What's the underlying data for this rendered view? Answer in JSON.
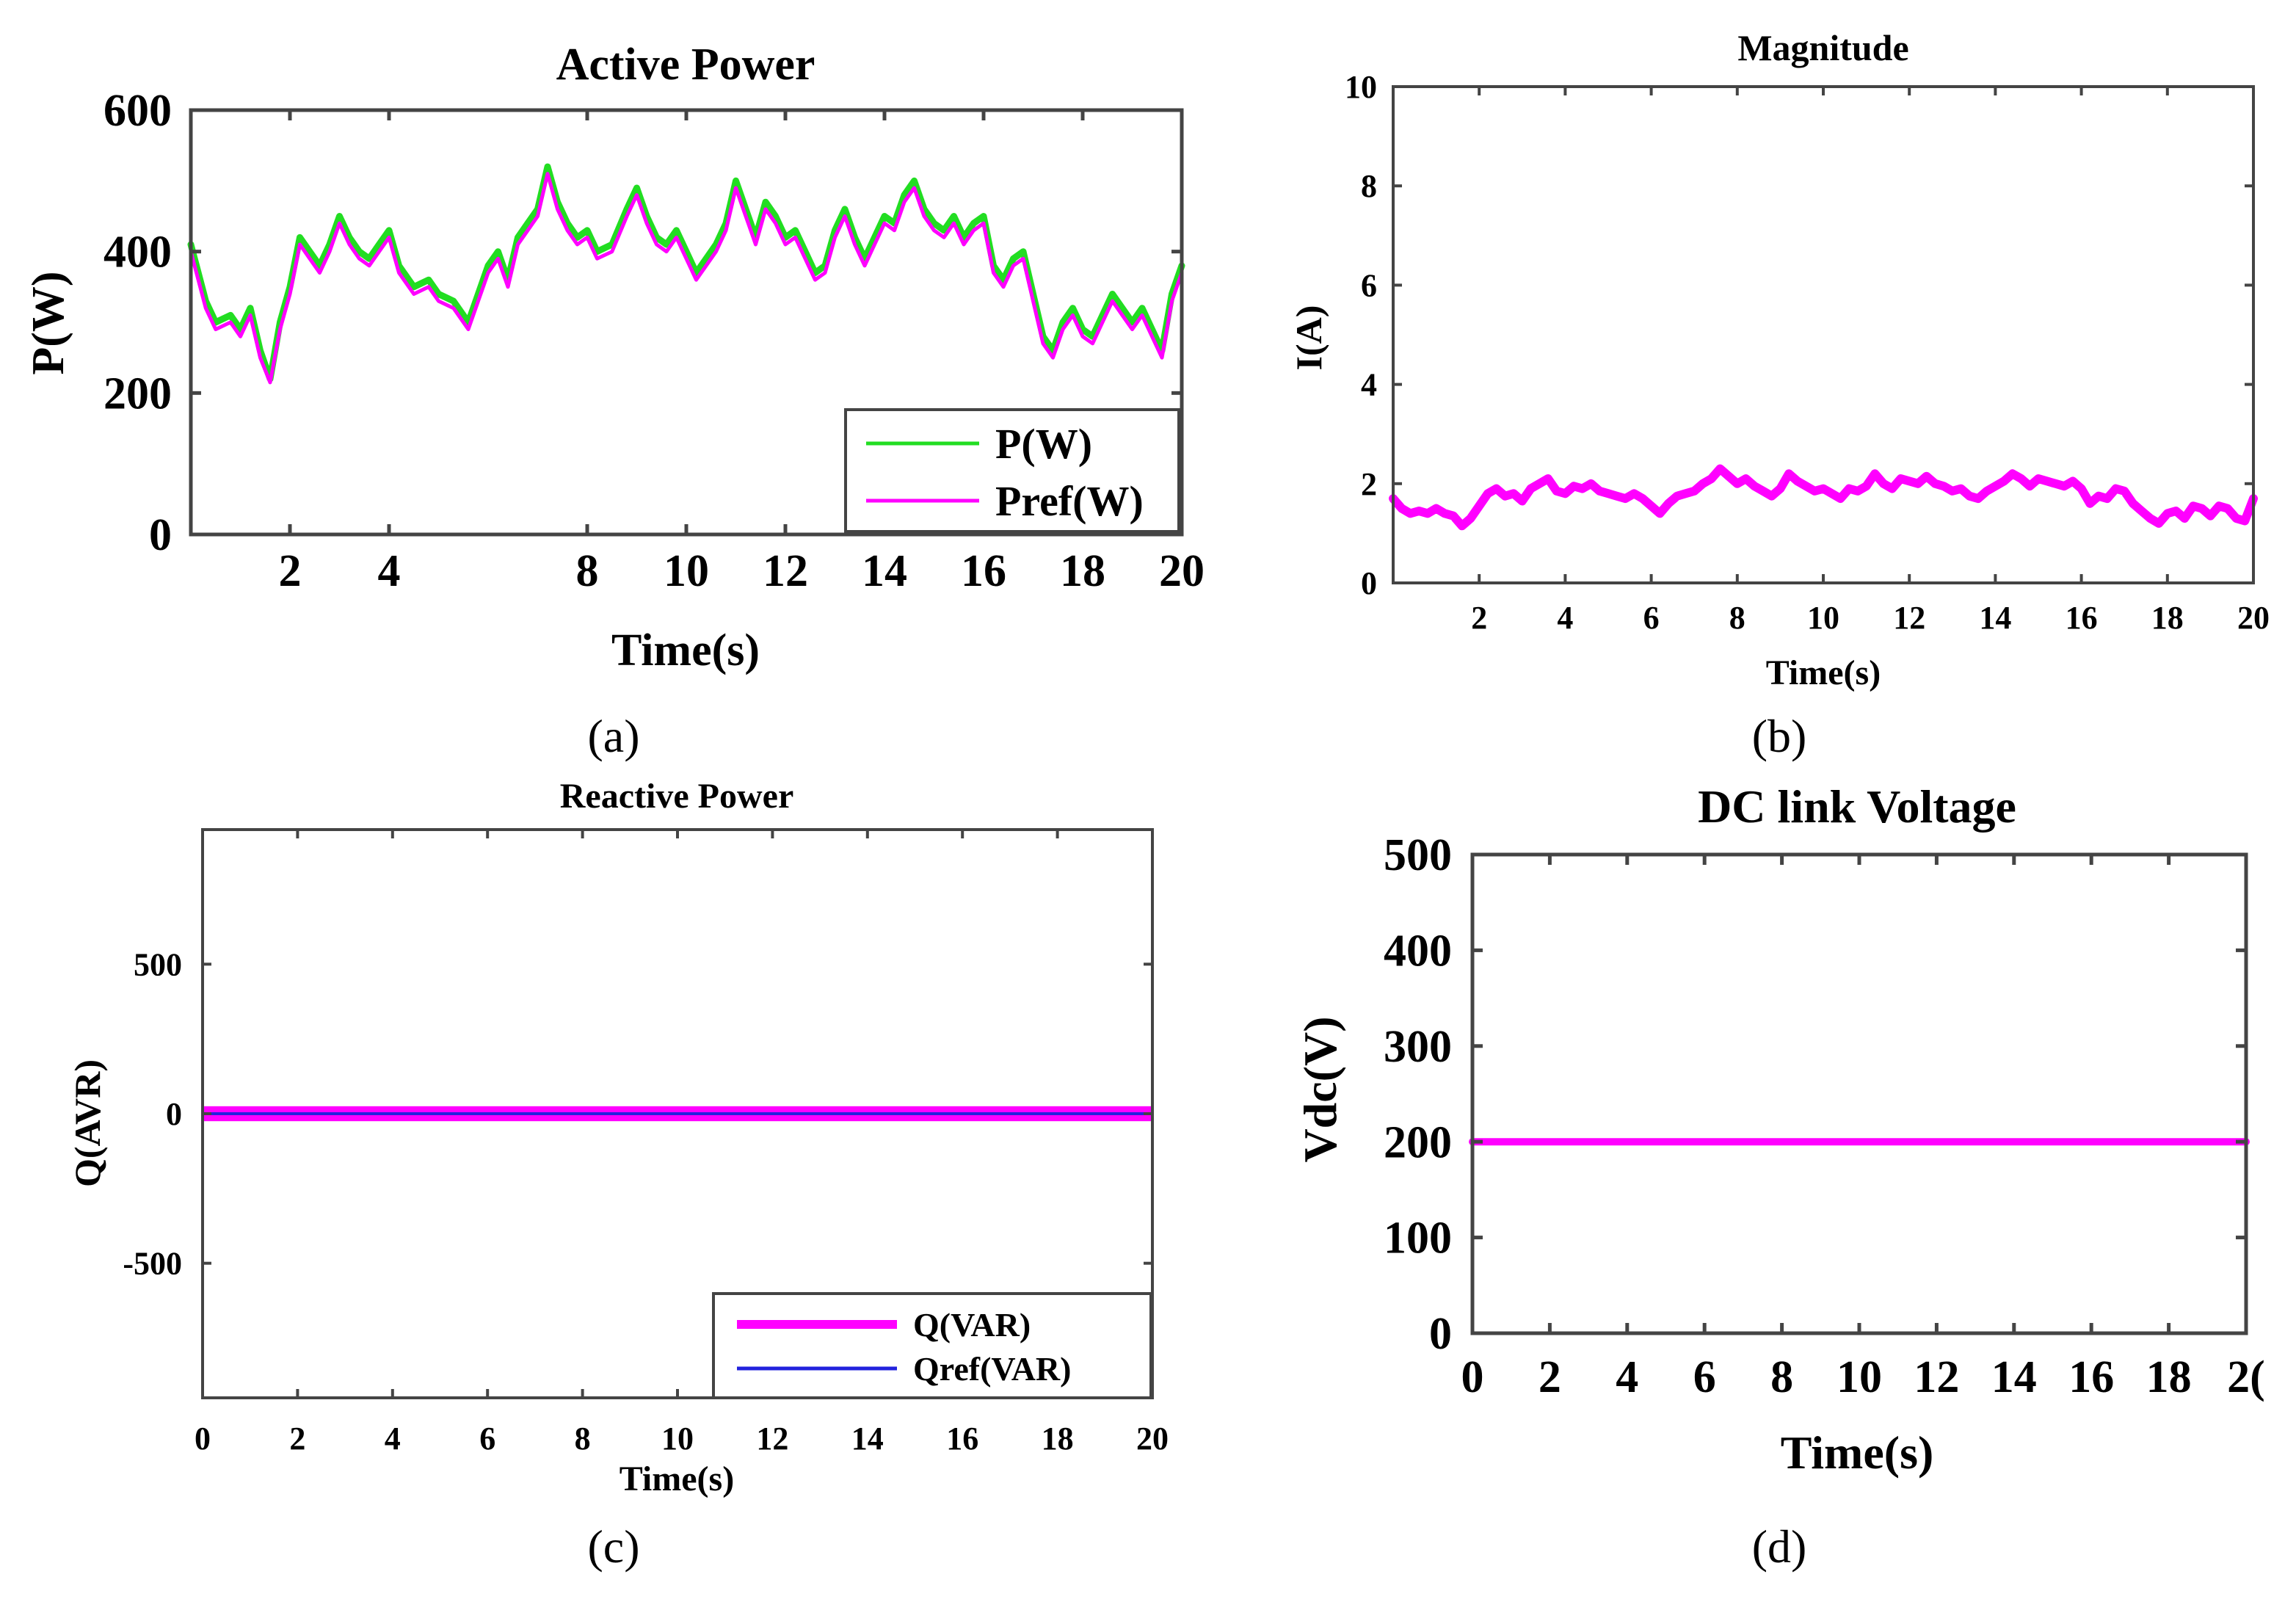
{
  "colors": {
    "p_line": "#22dd22",
    "pref_line": "#ff00ff",
    "current_line": "#ff00ff",
    "q_line": "#ff00ff",
    "qref_line": "#2222dd",
    "vdc_line": "#ff00ff",
    "axes": "#444444"
  },
  "chart_data": [
    {
      "id": "a",
      "type": "line",
      "title": "Active Power",
      "xlabel": "Time(s)",
      "ylabel": "P(W)",
      "caption": "(a)",
      "xlim": [
        0,
        20
      ],
      "ylim": [
        0,
        600
      ],
      "xticks": [
        2,
        4,
        8,
        10,
        12,
        14,
        16,
        18,
        20
      ],
      "yticks": [
        0,
        200,
        400,
        600
      ],
      "legend": "bottom-right",
      "series": [
        {
          "name": "P(W)",
          "x": [
            0,
            0.3,
            0.5,
            0.8,
            1.0,
            1.2,
            1.4,
            1.6,
            1.8,
            2.0,
            2.2,
            2.4,
            2.6,
            2.8,
            3.0,
            3.2,
            3.4,
            3.6,
            3.8,
            4.0,
            4.2,
            4.5,
            4.8,
            5.0,
            5.3,
            5.6,
            6.0,
            6.2,
            6.4,
            6.6,
            6.8,
            7.0,
            7.2,
            7.4,
            7.6,
            7.8,
            8.0,
            8.2,
            8.5,
            8.8,
            9.0,
            9.2,
            9.4,
            9.6,
            9.8,
            10.0,
            10.2,
            10.4,
            10.6,
            10.8,
            11.0,
            11.2,
            11.4,
            11.6,
            11.8,
            12.0,
            12.2,
            12.4,
            12.6,
            12.8,
            13.0,
            13.2,
            13.4,
            13.6,
            13.8,
            14.0,
            14.2,
            14.4,
            14.6,
            14.8,
            15.0,
            15.2,
            15.4,
            15.6,
            15.8,
            16.0,
            16.2,
            16.4,
            16.6,
            16.8,
            17.0,
            17.2,
            17.4,
            17.6,
            17.8,
            18.0,
            18.2,
            18.4,
            18.6,
            18.8,
            19.0,
            19.2,
            19.4,
            19.6,
            19.8,
            20.0
          ],
          "values": [
            410,
            330,
            300,
            310,
            290,
            320,
            260,
            220,
            300,
            350,
            420,
            400,
            380,
            410,
            450,
            420,
            400,
            390,
            410,
            430,
            380,
            350,
            360,
            340,
            330,
            300,
            380,
            400,
            360,
            420,
            440,
            460,
            520,
            470,
            440,
            420,
            430,
            400,
            410,
            460,
            490,
            450,
            420,
            410,
            430,
            400,
            370,
            390,
            410,
            440,
            500,
            460,
            420,
            470,
            450,
            420,
            430,
            400,
            370,
            380,
            430,
            460,
            420,
            390,
            420,
            450,
            440,
            480,
            500,
            460,
            440,
            430,
            450,
            420,
            440,
            450,
            380,
            360,
            390,
            400,
            340,
            280,
            260,
            300,
            320,
            290,
            280,
            310,
            340,
            320,
            300,
            320,
            290,
            260,
            340,
            380
          ]
        },
        {
          "name": "Pref(W)",
          "x": [
            0,
            0.3,
            0.5,
            0.8,
            1.0,
            1.2,
            1.4,
            1.6,
            1.8,
            2.0,
            2.2,
            2.4,
            2.6,
            2.8,
            3.0,
            3.2,
            3.4,
            3.6,
            3.8,
            4.0,
            4.2,
            4.5,
            4.8,
            5.0,
            5.3,
            5.6,
            6.0,
            6.2,
            6.4,
            6.6,
            6.8,
            7.0,
            7.2,
            7.4,
            7.6,
            7.8,
            8.0,
            8.2,
            8.5,
            8.8,
            9.0,
            9.2,
            9.4,
            9.6,
            9.8,
            10.0,
            10.2,
            10.4,
            10.6,
            10.8,
            11.0,
            11.2,
            11.4,
            11.6,
            11.8,
            12.0,
            12.2,
            12.4,
            12.6,
            12.8,
            13.0,
            13.2,
            13.4,
            13.6,
            13.8,
            14.0,
            14.2,
            14.4,
            14.6,
            14.8,
            15.0,
            15.2,
            15.4,
            15.6,
            15.8,
            16.0,
            16.2,
            16.4,
            16.6,
            16.8,
            17.0,
            17.2,
            17.4,
            17.6,
            17.8,
            18.0,
            18.2,
            18.4,
            18.6,
            18.8,
            19.0,
            19.2,
            19.4,
            19.6,
            19.8,
            20.0
          ],
          "values": [
            400,
            320,
            290,
            300,
            280,
            310,
            250,
            215,
            290,
            340,
            410,
            390,
            370,
            400,
            440,
            410,
            390,
            380,
            400,
            420,
            370,
            340,
            350,
            330,
            320,
            290,
            370,
            390,
            350,
            410,
            430,
            450,
            510,
            460,
            430,
            410,
            420,
            390,
            400,
            450,
            480,
            440,
            410,
            400,
            420,
            390,
            360,
            380,
            400,
            430,
            490,
            450,
            410,
            460,
            440,
            410,
            420,
            390,
            360,
            370,
            420,
            450,
            410,
            380,
            410,
            440,
            430,
            470,
            490,
            450,
            430,
            420,
            440,
            410,
            430,
            440,
            370,
            350,
            380,
            390,
            330,
            270,
            250,
            290,
            310,
            280,
            270,
            300,
            330,
            310,
            290,
            310,
            280,
            250,
            330,
            370
          ]
        }
      ]
    },
    {
      "id": "b",
      "type": "line",
      "title": "Magnitude",
      "xlabel": "Time(s)",
      "ylabel": "I(A)",
      "caption": "(b)",
      "xlim": [
        0,
        20
      ],
      "ylim": [
        0,
        10
      ],
      "xticks": [
        2,
        4,
        6,
        8,
        10,
        12,
        14,
        16,
        18,
        20
      ],
      "yticks": [
        0,
        2,
        4,
        6,
        8,
        10
      ],
      "series": [
        {
          "name": "I(A)",
          "x": [
            0,
            0.2,
            0.4,
            0.6,
            0.8,
            1.0,
            1.2,
            1.4,
            1.6,
            1.8,
            2.0,
            2.2,
            2.4,
            2.6,
            2.8,
            3.0,
            3.2,
            3.4,
            3.6,
            3.8,
            4.0,
            4.2,
            4.4,
            4.6,
            4.8,
            5.0,
            5.2,
            5.4,
            5.6,
            5.8,
            6.0,
            6.2,
            6.4,
            6.6,
            6.8,
            7.0,
            7.2,
            7.4,
            7.6,
            7.8,
            8.0,
            8.2,
            8.4,
            8.6,
            8.8,
            9.0,
            9.2,
            9.4,
            9.6,
            9.8,
            10.0,
            10.2,
            10.4,
            10.6,
            10.8,
            11.0,
            11.2,
            11.4,
            11.6,
            11.8,
            12.0,
            12.2,
            12.4,
            12.6,
            12.8,
            13.0,
            13.2,
            13.4,
            13.6,
            13.8,
            14.0,
            14.2,
            14.4,
            14.6,
            14.8,
            15.0,
            15.2,
            15.4,
            15.6,
            15.8,
            16.0,
            16.2,
            16.4,
            16.6,
            16.8,
            17.0,
            17.2,
            17.4,
            17.6,
            17.8,
            18.0,
            18.2,
            18.4,
            18.6,
            18.8,
            19.0,
            19.2,
            19.4,
            19.6,
            19.8,
            20.0
          ],
          "values": [
            1.7,
            1.5,
            1.4,
            1.45,
            1.4,
            1.5,
            1.4,
            1.35,
            1.15,
            1.3,
            1.55,
            1.8,
            1.9,
            1.75,
            1.8,
            1.65,
            1.9,
            2.0,
            2.1,
            1.85,
            1.8,
            1.95,
            1.9,
            2.0,
            1.85,
            1.8,
            1.75,
            1.7,
            1.8,
            1.7,
            1.55,
            1.4,
            1.6,
            1.75,
            1.8,
            1.85,
            2.0,
            2.1,
            2.3,
            2.15,
            2.0,
            2.1,
            1.95,
            1.85,
            1.75,
            1.9,
            2.2,
            2.05,
            1.95,
            1.85,
            1.9,
            1.8,
            1.7,
            1.9,
            1.85,
            1.95,
            2.2,
            2.0,
            1.9,
            2.1,
            2.05,
            2.0,
            2.15,
            2.0,
            1.95,
            1.85,
            1.9,
            1.75,
            1.7,
            1.85,
            1.95,
            2.05,
            2.2,
            2.1,
            1.95,
            2.1,
            2.05,
            2.0,
            1.95,
            2.05,
            1.9,
            1.6,
            1.75,
            1.7,
            1.9,
            1.85,
            1.6,
            1.45,
            1.3,
            1.2,
            1.4,
            1.45,
            1.3,
            1.55,
            1.5,
            1.35,
            1.55,
            1.5,
            1.3,
            1.25,
            1.7
          ]
        }
      ]
    },
    {
      "id": "c",
      "type": "line",
      "title": "Reactive Power",
      "xlabel": "Time(s)",
      "ylabel": "Q(AVR)",
      "caption": "(c)",
      "xlim": [
        0,
        20
      ],
      "ylim": [
        -950,
        950
      ],
      "xticks": [
        0,
        2,
        4,
        6,
        8,
        10,
        12,
        14,
        16,
        18,
        20
      ],
      "yticks": [
        -500,
        0,
        500
      ],
      "legend": "bottom-right",
      "series": [
        {
          "name": "Q(VAR)",
          "x": [
            0,
            20
          ],
          "values": [
            0,
            0
          ],
          "band": [
            -25,
            25
          ]
        },
        {
          "name": "Qref(VAR)",
          "x": [
            0,
            20
          ],
          "values": [
            0,
            0
          ]
        }
      ]
    },
    {
      "id": "d",
      "type": "line",
      "title": "DC link Voltage",
      "xlabel": "Time(s)",
      "ylabel": "Vdc(V)",
      "caption": "(d)",
      "xlim": [
        0,
        20
      ],
      "ylim": [
        0,
        500
      ],
      "xticks": [
        0,
        2,
        4,
        6,
        8,
        10,
        12,
        14,
        16,
        18,
        "2("
      ],
      "yticks": [
        0,
        100,
        200,
        300,
        400,
        500
      ],
      "series": [
        {
          "name": "Vdc(V)",
          "x": [
            0,
            20
          ],
          "values": [
            200,
            200
          ]
        }
      ]
    }
  ]
}
